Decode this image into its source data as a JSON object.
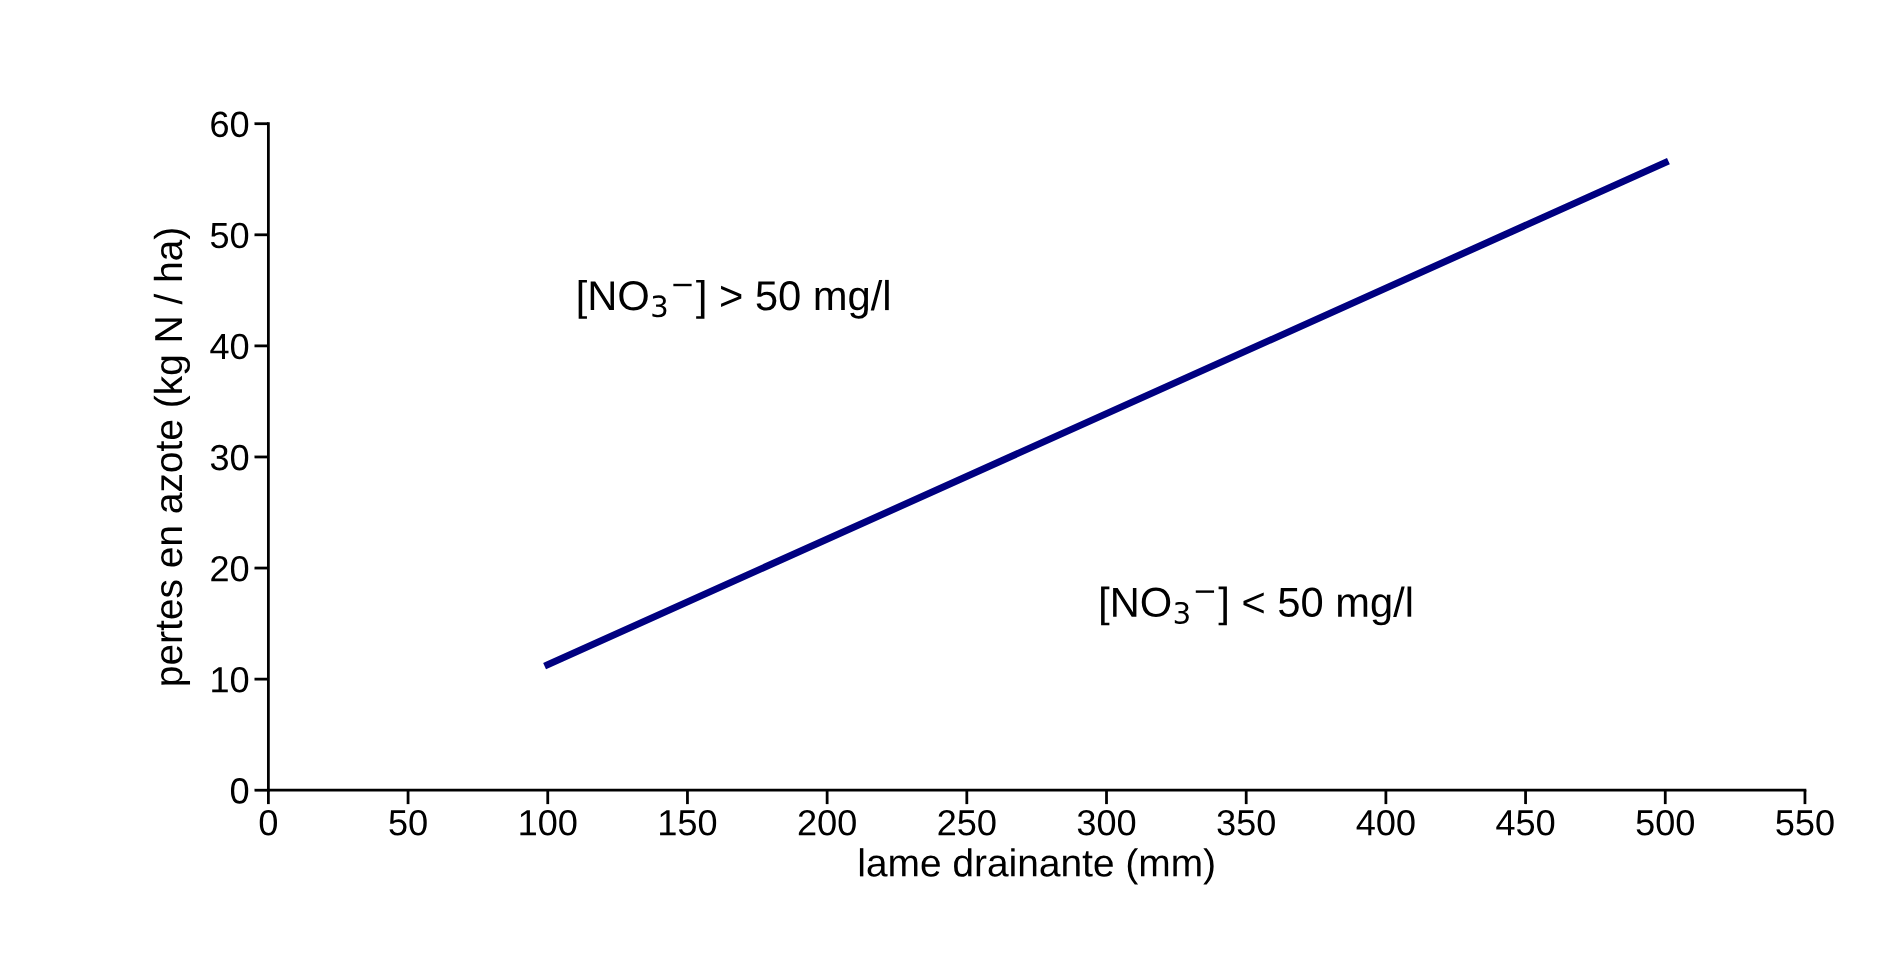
{
  "chart_data": {
    "type": "line",
    "xlabel": "lame drainante (mm)",
    "ylabel": "pertes en azote (kg N / ha)",
    "x": [
      100,
      500
    ],
    "series": [
      {
        "color": "#000080",
        "values": [
          11.3,
          56.5
        ]
      }
    ],
    "xlim": [
      0,
      550
    ],
    "xticks": [
      0,
      50,
      100,
      150,
      200,
      250,
      300,
      350,
      400,
      450,
      500,
      550
    ],
    "ylim": [
      0,
      60
    ],
    "yticks": [
      0,
      10,
      20,
      30,
      40,
      50,
      60
    ],
    "grid": false,
    "marker": "none",
    "line_style": "solid",
    "annotations": [
      "[NO$_{3}$$^{−}$] > 50 mg/l",
      "[NO$_{3}$$^{−}$] < 50 mg/l"
    ]
  }
}
